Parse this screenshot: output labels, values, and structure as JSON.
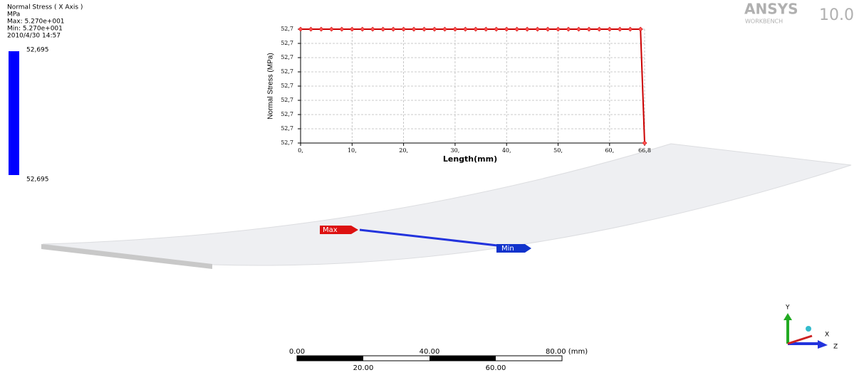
{
  "info": {
    "title": "Normal Stress ( X Axis )",
    "unit": "MPa",
    "max": "Max: 5.270e+001",
    "min": "Min: 5.270e+001",
    "timestamp": "2010/4/30 14:57",
    "legend": [
      "52,695",
      "52,695"
    ]
  },
  "logo": {
    "name": "ANSYS",
    "product": "WORKBENCH",
    "version": "10.0"
  },
  "probes": [
    "Max",
    "Min"
  ],
  "scale_bar": {
    "top": [
      "0.00",
      "40.00",
      "80.00 (mm)"
    ],
    "bottom": [
      "20.00",
      "60.00"
    ]
  },
  "triad": [
    "Y",
    "X",
    "Z"
  ],
  "chart_data": {
    "type": "line",
    "x_label": "Length(mm)",
    "y_label": "Normal Stress (MPa)",
    "color": "#cc0000",
    "grid": true,
    "x": [
      0,
      2,
      4,
      6,
      8,
      10,
      12,
      14,
      16,
      18,
      20,
      22,
      24,
      26,
      28,
      30,
      32,
      34,
      36,
      38,
      40,
      42,
      44,
      46,
      48,
      50,
      52,
      54,
      56,
      58,
      60,
      62,
      64,
      66,
      66.8
    ],
    "values": [
      52.6954,
      52.6954,
      52.6954,
      52.6954,
      52.6954,
      52.6954,
      52.6954,
      52.6954,
      52.6954,
      52.6954,
      52.6954,
      52.6954,
      52.6954,
      52.6954,
      52.6954,
      52.6954,
      52.6954,
      52.6954,
      52.6954,
      52.6954,
      52.6954,
      52.6954,
      52.6954,
      52.6954,
      52.6954,
      52.6954,
      52.6954,
      52.6954,
      52.6954,
      52.6954,
      52.6954,
      52.6954,
      52.6954,
      52.6954,
      52.6946
    ],
    "xlim": [
      0,
      66.8
    ],
    "xticks": [
      {
        "value": 0,
        "label": "0,"
      },
      {
        "value": 10,
        "label": "10,"
      },
      {
        "value": 20,
        "label": "20,"
      },
      {
        "value": 30,
        "label": "30,"
      },
      {
        "value": 40,
        "label": "40,"
      },
      {
        "value": 50,
        "label": "50,"
      },
      {
        "value": 60,
        "label": "60,"
      },
      {
        "value": 66.8,
        "label": "66,8"
      }
    ],
    "ylim": [
      52.6946,
      52.6954
    ],
    "yticks": [
      {
        "value": 52.6946,
        "label": "52,7"
      },
      {
        "value": 52.6947,
        "label": "52,7"
      },
      {
        "value": 52.6948,
        "label": "52,7"
      },
      {
        "value": 52.6949,
        "label": "52,7"
      },
      {
        "value": 52.695,
        "label": "52,7"
      },
      {
        "value": 52.6951,
        "label": "52,7"
      },
      {
        "value": 52.6952,
        "label": "52,7"
      },
      {
        "value": 52.6953,
        "label": "52,7"
      },
      {
        "value": 52.6954,
        "label": "52,7"
      }
    ]
  }
}
